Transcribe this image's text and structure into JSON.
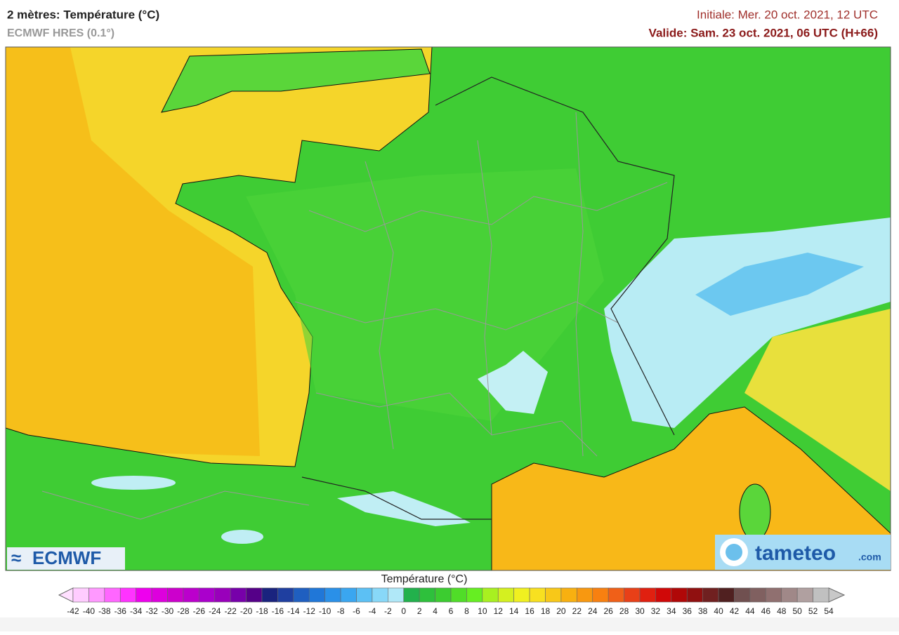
{
  "header": {
    "title": "2 mètres: Température (°C)",
    "subtitle": "ECMWF HRES (0.1°)",
    "initial": "Initiale: Mer. 20 oct. 2021, 12 UTC",
    "valid": "Valide: Sam. 23 oct. 2021, 06 UTC (H+66)"
  },
  "logos": {
    "left": "ECMWF",
    "right": "tameteo",
    "right_suffix": ".com"
  },
  "colorbar": {
    "label": "Température (°C)",
    "ticks": [
      -42,
      -40,
      -38,
      -36,
      -34,
      -32,
      -30,
      -28,
      -26,
      -24,
      -22,
      -20,
      -18,
      -16,
      -14,
      -12,
      -10,
      -8,
      -6,
      -4,
      -2,
      0,
      2,
      4,
      6,
      8,
      10,
      12,
      14,
      16,
      18,
      20,
      22,
      24,
      26,
      28,
      30,
      32,
      34,
      36,
      38,
      40,
      42,
      44,
      46,
      48,
      50,
      52,
      54
    ],
    "colors": [
      "#ffccff",
      "#ff99ff",
      "#ff66ff",
      "#ff33ff",
      "#ee00ee",
      "#dd00dd",
      "#cc00cc",
      "#bb00cc",
      "#aa00cc",
      "#9900bb",
      "#7700aa",
      "#550088",
      "#1a237e",
      "#1f3fa0",
      "#1f5fc0",
      "#2077d8",
      "#2a90e8",
      "#3aa6f0",
      "#5cc0f4",
      "#88d8f8",
      "#b0e8f8",
      "#22b14c",
      "#2ec03c",
      "#3ccc30",
      "#50dd28",
      "#66ee22",
      "#a8f020",
      "#d4f020",
      "#f0f020",
      "#f8e020",
      "#f8c818",
      "#f8b010",
      "#f89810",
      "#f88010",
      "#f06018",
      "#e84018",
      "#e02010",
      "#d00808",
      "#b00808",
      "#901010",
      "#702020",
      "#502020",
      "#705050",
      "#806060",
      "#907070",
      "#a08888",
      "#b0a0a0",
      "#c0c0c0"
    ],
    "under_color": "#ffe0ff",
    "over_color": "#c8c8c8"
  }
}
